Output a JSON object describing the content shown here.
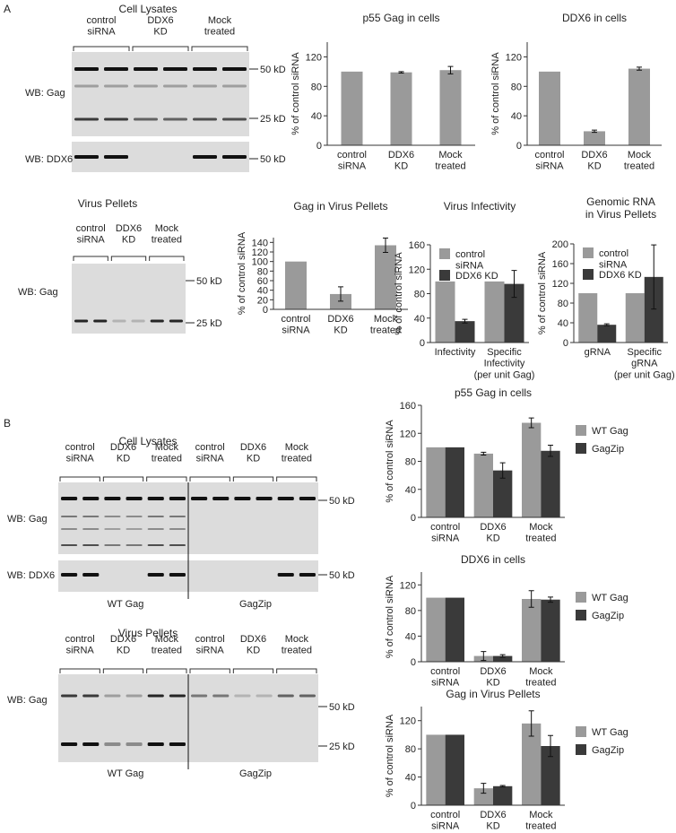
{
  "panel_labels": [
    "A",
    "B"
  ],
  "blots": [
    {
      "title": "Cell Lysates",
      "groups": [
        "control\nsiRNA",
        "DDX6\nKD",
        "Mock\ntreated"
      ],
      "row_labels": [
        "WB: Gag",
        "WB: DDX6"
      ],
      "markers": [
        "50 kD",
        "25 kD",
        "50 kD"
      ]
    },
    {
      "title": "Virus Pellets",
      "groups": [
        "control\nsiRNA",
        "DDX6\nKD",
        "Mock\ntreated"
      ],
      "row_labels": [
        "WB: Gag"
      ],
      "markers": [
        "50 kD",
        "25 kD"
      ]
    },
    {
      "title": "Cell Lysates",
      "groups": [
        "control\nsiRNA",
        "DDX6\nKD",
        "Mock\ntreated",
        "control\nsiRNA",
        "DDX6\nKD",
        "Mock\ntreated"
      ],
      "row_labels": [
        "WB: Gag",
        "WB: DDX6"
      ],
      "markers": [
        "50 kD",
        "50 kD"
      ],
      "constructs": [
        "WT Gag",
        "GagZip"
      ]
    },
    {
      "title": "Virus Pellets",
      "groups": [
        "control\nsiRNA",
        "DDX6\nKD",
        "Mock\ntreated",
        "control\nsiRNA",
        "DDX6\nKD",
        "Mock\ntreated"
      ],
      "row_labels": [
        "WB: Gag"
      ],
      "markers": [
        "50 kD",
        "25 kD"
      ],
      "constructs": [
        "WT Gag",
        "GagZip"
      ]
    }
  ],
  "chart_data": [
    {
      "type": "bar",
      "title": "p55 Gag in cells",
      "y_label": "% of control siRNA",
      "categories": [
        "control\nsiRNA",
        "DDX6\nKD",
        "Mock\ntreated"
      ],
      "values": [
        100,
        99,
        102
      ],
      "errors": [
        null,
        1,
        5
      ],
      "color": "#9a9a9a",
      "ylim": [
        0,
        140
      ],
      "yticks": [
        0,
        40,
        80,
        120
      ]
    },
    {
      "type": "bar",
      "title": "DDX6 in cells",
      "y_label": "% of control siRNA",
      "categories": [
        "control\nsiRNA",
        "DDX6\nKD",
        "Mock\ntreated"
      ],
      "values": [
        100,
        19,
        104
      ],
      "errors": [
        null,
        1.5,
        2
      ],
      "color": "#9a9a9a",
      "ylim": [
        0,
        140
      ],
      "yticks": [
        0,
        40,
        80,
        120
      ]
    },
    {
      "type": "bar",
      "title": "Gag in Virus Pellets",
      "y_label": "% of control siRNA",
      "categories": [
        "control\nsiRNA",
        "DDX6\nKD",
        "Mock\ntreated"
      ],
      "values": [
        100,
        32,
        134
      ],
      "errors": [
        null,
        15,
        15
      ],
      "color": "#9a9a9a",
      "ylim": [
        0,
        150
      ],
      "yticks": [
        0,
        20,
        40,
        60,
        80,
        100,
        120,
        140
      ]
    },
    {
      "type": "bar",
      "title": "Virus Infectivity",
      "y_label": "% of control siRNA",
      "categories": [
        "Infectivity",
        "Specific\nInfectivity\n(per unit Gag)"
      ],
      "series": [
        {
          "name": "control\nsiRNA",
          "color": "#9a9a9a",
          "values": [
            100,
            100
          ],
          "errors": [
            null,
            null
          ]
        },
        {
          "name": "DDX6 KD",
          "color": "#3a3a3a",
          "values": [
            35,
            96
          ],
          "errors": [
            3,
            22
          ]
        }
      ],
      "ylim": [
        0,
        160
      ],
      "yticks": [
        0,
        40,
        80,
        120,
        160
      ],
      "legend": "top-left"
    },
    {
      "type": "bar",
      "title": "Genomic RNA\nin Virus Pellets",
      "y_label": "% of control siRNA",
      "categories": [
        "gRNA",
        "Specific\ngRNA\n(per unit Gag)"
      ],
      "series": [
        {
          "name": "control\nsiRNA",
          "color": "#9a9a9a",
          "values": [
            100,
            100
          ],
          "errors": [
            null,
            null
          ]
        },
        {
          "name": "DDX6 KD",
          "color": "#3a3a3a",
          "values": [
            36,
            133
          ],
          "errors": [
            2,
            65
          ]
        }
      ],
      "ylim": [
        0,
        200
      ],
      "yticks": [
        0,
        40,
        80,
        120,
        160,
        200
      ],
      "legend": "top-left"
    },
    {
      "type": "bar",
      "title": "p55 Gag in cells",
      "y_label": "% of control siRNA",
      "categories": [
        "control\nsiRNA",
        "DDX6\nKD",
        "Mock\ntreated"
      ],
      "series": [
        {
          "name": "WT Gag",
          "color": "#9a9a9a",
          "values": [
            100,
            91,
            135
          ],
          "errors": [
            null,
            2,
            7
          ]
        },
        {
          "name": "GagZip",
          "color": "#3a3a3a",
          "values": [
            100,
            67,
            95
          ],
          "errors": [
            null,
            11,
            8
          ]
        }
      ],
      "ylim": [
        0,
        160
      ],
      "yticks": [
        0,
        40,
        80,
        120,
        160
      ],
      "legend": "right"
    },
    {
      "type": "bar",
      "title": "DDX6 in cells",
      "y_label": "% of control siRNA",
      "categories": [
        "control\nsiRNA",
        "DDX6\nKD",
        "Mock\ntreated"
      ],
      "series": [
        {
          "name": "WT Gag",
          "color": "#9a9a9a",
          "values": [
            100,
            9,
            98
          ],
          "errors": [
            null,
            7,
            13
          ]
        },
        {
          "name": "GagZip",
          "color": "#3a3a3a",
          "values": [
            100,
            9,
            97
          ],
          "errors": [
            null,
            2,
            4
          ]
        }
      ],
      "ylim": [
        0,
        140
      ],
      "yticks": [
        0,
        40,
        80,
        120
      ],
      "legend": "right"
    },
    {
      "type": "bar",
      "title": "Gag in Virus Pellets",
      "y_label": "% of control siRNA",
      "categories": [
        "control\nsiRNA",
        "DDX6\nKD",
        "Mock\ntreated"
      ],
      "series": [
        {
          "name": "WT Gag",
          "color": "#9a9a9a",
          "values": [
            100,
            24,
            116
          ],
          "errors": [
            null,
            7,
            18
          ]
        },
        {
          "name": "GagZip",
          "color": "#3a3a3a",
          "values": [
            100,
            27,
            84
          ],
          "errors": [
            null,
            1,
            15
          ]
        }
      ],
      "ylim": [
        0,
        140
      ],
      "yticks": [
        0,
        40,
        80,
        120
      ],
      "legend": "right"
    }
  ]
}
